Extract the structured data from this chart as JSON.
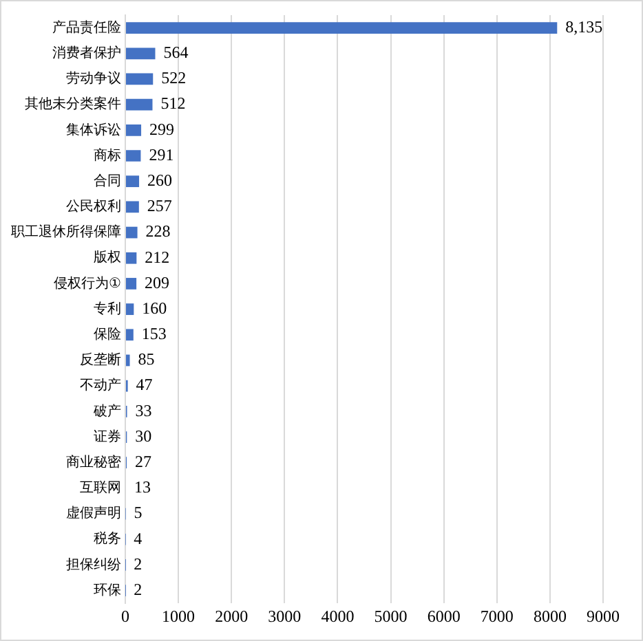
{
  "chart_data": {
    "type": "bar",
    "orientation": "horizontal",
    "categories": [
      "产品责任险",
      "消费者保护",
      "劳动争议",
      "其他未分类案件",
      "集体诉讼",
      "商标",
      "合同",
      "公民权利",
      "职工退休所得保障",
      "版权",
      "侵权行为①",
      "专利",
      "保险",
      "反垄断",
      "不动产",
      "破产",
      "证券",
      "商业秘密",
      "互联网",
      "虚假声明",
      "税务",
      "担保纠纷",
      "环保"
    ],
    "values": [
      8135,
      564,
      522,
      512,
      299,
      291,
      260,
      257,
      228,
      212,
      209,
      160,
      153,
      85,
      47,
      33,
      30,
      27,
      13,
      5,
      4,
      2,
      2
    ],
    "value_labels": [
      "8,135",
      "564",
      "522",
      "512",
      "299",
      "291",
      "260",
      "257",
      "228",
      "212",
      "209",
      "160",
      "153",
      "85",
      "47",
      "33",
      "30",
      "27",
      "13",
      "5",
      "4",
      "2",
      "2"
    ],
    "color": "#4472c4",
    "xlim": [
      0,
      9000
    ],
    "xticks": [
      0,
      1000,
      2000,
      3000,
      4000,
      5000,
      6000,
      7000,
      8000,
      9000
    ],
    "grid": "x",
    "legend": false
  }
}
